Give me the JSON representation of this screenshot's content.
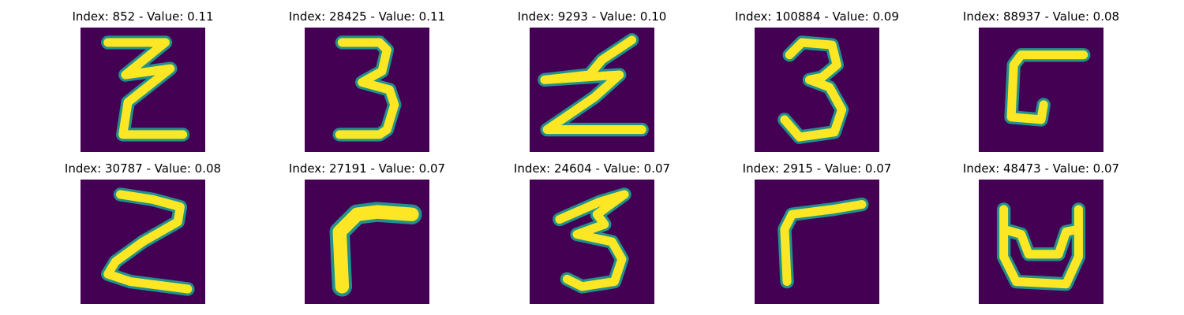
{
  "colors": {
    "background": "#440154",
    "stroke": "#fde725",
    "edge": "#21918c"
  },
  "panels": [
    {
      "title": "Index: 852 - Value: 0.11",
      "digit": "Z"
    },
    {
      "title": "Index: 28425 - Value: 0.11",
      "digit": "3"
    },
    {
      "title": "Index: 9293 - Value: 0.10",
      "digit": "Z"
    },
    {
      "title": "Index: 100884 - Value: 0.09",
      "digit": "3"
    },
    {
      "title": "Index: 88937 - Value: 0.08",
      "digit": "5"
    },
    {
      "title": "Index: 30787 - Value: 0.08",
      "digit": "Z"
    },
    {
      "title": "Index: 27191 - Value: 0.07",
      "digit": "7"
    },
    {
      "title": "Index: 24604 - Value: 0.07",
      "digit": "3"
    },
    {
      "title": "Index: 2915 - Value: 0.07",
      "digit": "7"
    },
    {
      "title": "Index: 48473 - Value: 0.07",
      "digit": "U"
    }
  ]
}
